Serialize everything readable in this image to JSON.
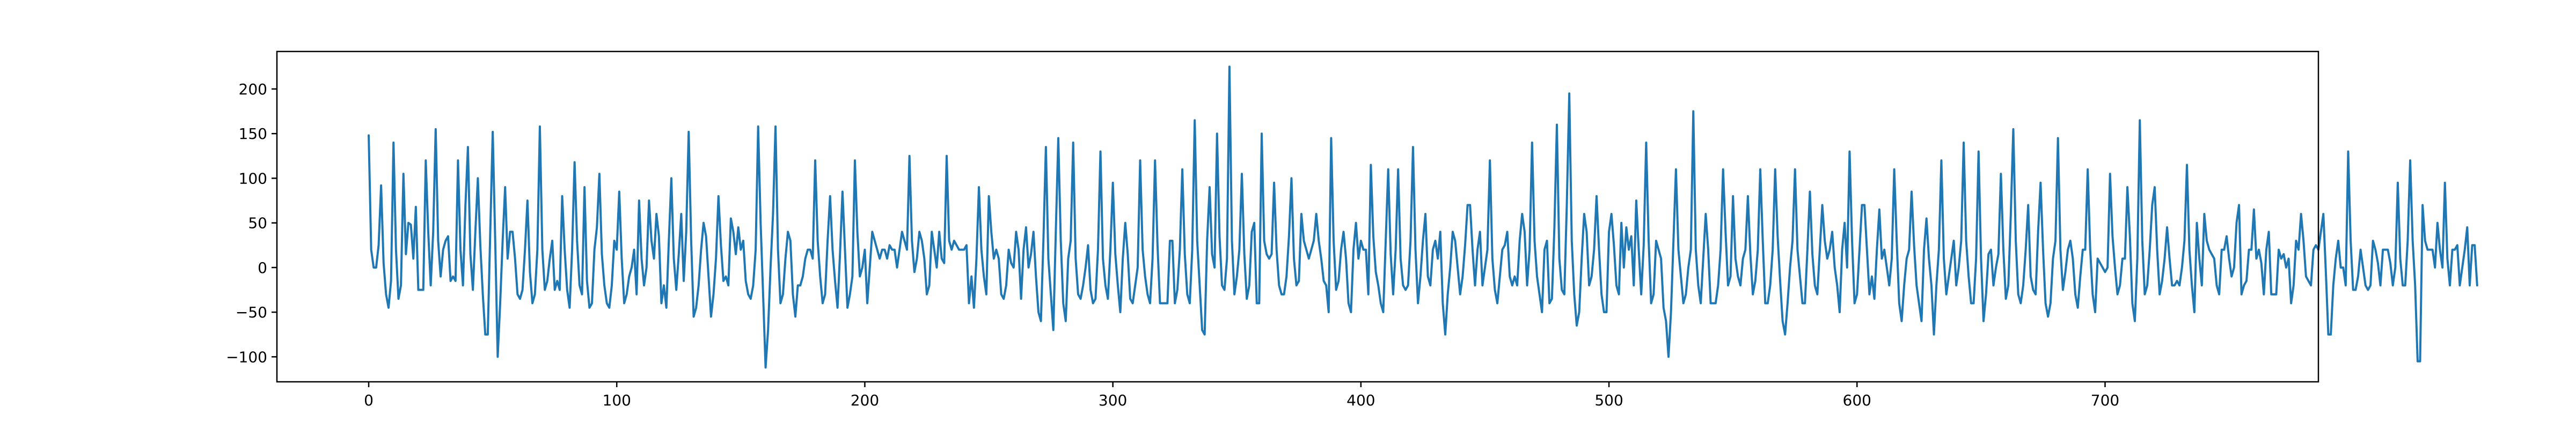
{
  "chart_data": {
    "type": "line",
    "title": "",
    "xlabel": "",
    "ylabel": "",
    "xlim": [
      -37,
      786
    ],
    "ylim": [
      -128,
      242
    ],
    "x_ticks": [
      0,
      100,
      200,
      300,
      400,
      500,
      600,
      700
    ],
    "y_ticks": [
      -100,
      -50,
      0,
      50,
      100,
      150,
      200
    ],
    "x_tick_labels": [
      "0",
      "100",
      "200",
      "300",
      "400",
      "500",
      "600",
      "700"
    ],
    "y_tick_labels": [
      "−100",
      "−50",
      "0",
      "50",
      "100",
      "150",
      "200"
    ],
    "grid": false,
    "legend": "none",
    "line_color": "#1f77b4",
    "series": [
      {
        "x_start": 0,
        "x_step": 1,
        "values": [
          148,
          20,
          0,
          0,
          25,
          92,
          5,
          -30,
          -45,
          -15,
          140,
          20,
          -35,
          -20,
          105,
          15,
          50,
          48,
          10,
          68,
          -25,
          -25,
          -25,
          120,
          40,
          -20,
          40,
          155,
          30,
          -10,
          20,
          30,
          35,
          -15,
          -10,
          -15,
          120,
          20,
          -20,
          70,
          135,
          15,
          -25,
          40,
          100,
          25,
          -30,
          -75,
          -75,
          40,
          152,
          30,
          -100,
          -40,
          30,
          90,
          10,
          40,
          40,
          10,
          -30,
          -35,
          -25,
          20,
          75,
          -5,
          -40,
          -30,
          20,
          158,
          20,
          -25,
          -15,
          10,
          30,
          -25,
          -15,
          -25,
          80,
          20,
          -25,
          -45,
          20,
          118,
          30,
          -20,
          -30,
          90,
          -15,
          -45,
          -40,
          20,
          45,
          105,
          15,
          -20,
          -40,
          -45,
          -20,
          30,
          20,
          85,
          10,
          -40,
          -30,
          -10,
          0,
          20,
          -30,
          75,
          10,
          -20,
          0,
          75,
          30,
          10,
          60,
          35,
          -40,
          -20,
          -45,
          30,
          100,
          10,
          -25,
          15,
          60,
          -15,
          40,
          152,
          30,
          -55,
          -45,
          -20,
          20,
          50,
          35,
          -10,
          -55,
          -30,
          10,
          80,
          25,
          -15,
          -10,
          -20,
          55,
          40,
          15,
          45,
          20,
          30,
          -15,
          -30,
          -35,
          -20,
          20,
          158,
          50,
          -30,
          -112,
          -70,
          0,
          60,
          158,
          20,
          -40,
          -30,
          10,
          40,
          30,
          -30,
          -55,
          -20,
          -20,
          -10,
          10,
          20,
          20,
          10,
          120,
          30,
          -10,
          -40,
          -30,
          30,
          80,
          20,
          -15,
          -45,
          15,
          85,
          20,
          -45,
          -30,
          -10,
          120,
          40,
          -10,
          0,
          20,
          -40,
          0,
          40,
          30,
          20,
          10,
          20,
          20,
          10,
          25,
          20,
          20,
          0,
          20,
          40,
          30,
          20,
          125,
          30,
          -5,
          10,
          40,
          30,
          10,
          -30,
          -20,
          40,
          20,
          0,
          40,
          10,
          5,
          125,
          30,
          20,
          30,
          25,
          20,
          20,
          20,
          25,
          -40,
          -10,
          -45,
          10,
          90,
          20,
          -10,
          -30,
          80,
          40,
          10,
          20,
          10,
          -30,
          -35,
          -20,
          20,
          5,
          0,
          40,
          20,
          -35,
          20,
          45,
          0,
          15,
          40,
          -10,
          -50,
          -60,
          30,
          135,
          10,
          -30,
          -70,
          40,
          145,
          30,
          -40,
          -60,
          10,
          30,
          140,
          10,
          -30,
          -35,
          -20,
          0,
          25,
          -25,
          -40,
          -35,
          20,
          130,
          10,
          -20,
          -35,
          20,
          95,
          15,
          -20,
          -50,
          10,
          50,
          15,
          -35,
          -40,
          -20,
          0,
          120,
          20,
          -10,
          -30,
          -40,
          10,
          120,
          25,
          -40,
          -40,
          -40,
          -40,
          30,
          30,
          -40,
          -25,
          20,
          110,
          15,
          -30,
          -40,
          20,
          165,
          30,
          -20,
          -70,
          -75,
          30,
          90,
          15,
          0,
          150,
          35,
          -20,
          -25,
          10,
          225,
          30,
          -30,
          -10,
          20,
          105,
          15,
          -35,
          -20,
          40,
          50,
          -40,
          -40,
          150,
          30,
          15,
          10,
          15,
          95,
          20,
          -20,
          -30,
          -30,
          -10,
          35,
          100,
          10,
          -20,
          -15,
          60,
          30,
          20,
          10,
          20,
          30,
          60,
          30,
          10,
          -15,
          -20,
          -50,
          145,
          30,
          -25,
          -15,
          20,
          40,
          10,
          -40,
          -50,
          20,
          50,
          10,
          30,
          20,
          20,
          -30,
          115,
          35,
          -5,
          -20,
          -40,
          -50,
          30,
          110,
          15,
          -30,
          20,
          110,
          10,
          -20,
          -25,
          -20,
          30,
          135,
          20,
          -40,
          -10,
          30,
          60,
          -10,
          -20,
          20,
          30,
          10,
          40,
          -40,
          -75,
          -30,
          0,
          40,
          30,
          0,
          -30,
          -10,
          25,
          70,
          70,
          20,
          -20,
          20,
          40,
          -20,
          0,
          20,
          120,
          10,
          -25,
          -40,
          -10,
          20,
          25,
          40,
          -10,
          -20,
          -10,
          -20,
          30,
          60,
          40,
          -20,
          20,
          140,
          30,
          -10,
          -30,
          -50,
          20,
          30,
          -40,
          -35,
          45,
          160,
          10,
          -25,
          -30,
          70,
          195,
          30,
          -30,
          -65,
          -50,
          10,
          60,
          40,
          -20,
          -10,
          20,
          80,
          20,
          -30,
          -50,
          -50,
          40,
          60,
          25,
          -20,
          -30,
          50,
          0,
          45,
          20,
          35,
          -20,
          75,
          20,
          -30,
          25,
          140,
          30,
          -40,
          -30,
          30,
          20,
          10,
          -45,
          -60,
          -100,
          -50,
          30,
          110,
          20,
          -10,
          -40,
          -30,
          0,
          20,
          175,
          20,
          -20,
          -40,
          10,
          60,
          20,
          -40,
          -40,
          -40,
          -20,
          20,
          110,
          40,
          -20,
          -10,
          80,
          10,
          -10,
          -20,
          10,
          20,
          80,
          15,
          -30,
          -15,
          20,
          110,
          30,
          -40,
          -40,
          -20,
          20,
          110,
          35,
          -15,
          -60,
          -75,
          -40,
          0,
          30,
          110,
          20,
          -10,
          -40,
          -40,
          20,
          85,
          15,
          -20,
          -30,
          20,
          70,
          30,
          10,
          20,
          40,
          0,
          -20,
          -50,
          20,
          50,
          0,
          130,
          30,
          -40,
          -30,
          20,
          70,
          70,
          20,
          -30,
          -10,
          -35,
          20,
          65,
          10,
          20,
          0,
          -20,
          10,
          110,
          30,
          -40,
          -60,
          -20,
          10,
          20,
          85,
          25,
          -20,
          -40,
          -60,
          20,
          55,
          10,
          -20,
          -75,
          -20,
          20,
          120,
          10,
          -30,
          -10,
          10,
          30,
          -20,
          0,
          30,
          140,
          30,
          -10,
          -40,
          -40,
          10,
          130,
          10,
          -60,
          -30,
          15,
          20,
          -20,
          0,
          15,
          105,
          20,
          -35,
          -20,
          60,
          155,
          30,
          -30,
          -40,
          -20,
          20,
          70,
          -10,
          -25,
          -30,
          40,
          95,
          20,
          -40,
          -55,
          -40,
          10,
          30,
          145,
          20,
          -25,
          -5,
          20,
          30,
          10,
          -30,
          -45,
          -10,
          20,
          20,
          110,
          20,
          -30,
          -50,
          10,
          5,
          0,
          -5,
          0,
          105,
          35,
          0,
          -30,
          -20,
          10,
          10,
          90,
          35,
          -40,
          -60,
          10,
          165,
          30,
          -30,
          -20,
          20,
          70,
          90,
          20,
          -30,
          -15,
          10,
          45,
          10,
          -20,
          -20,
          -15,
          -20,
          0,
          30,
          115,
          20,
          -20,
          -50,
          50,
          10,
          -20,
          60,
          30,
          20,
          15,
          10,
          -20,
          -30,
          20,
          20,
          35,
          10,
          -10,
          0,
          50,
          70,
          -30,
          -20,
          -15,
          20,
          20,
          65,
          10,
          20,
          5,
          -30,
          20,
          40,
          -30,
          -30,
          -30,
          20,
          10,
          15,
          0,
          10,
          -40,
          -20,
          30,
          20,
          60,
          30,
          -10,
          -15,
          -20,
          20,
          25,
          20,
          40,
          60,
          -5,
          -75,
          -75,
          -20,
          10,
          30,
          0,
          0,
          -20,
          130,
          30,
          -25,
          -25,
          -10,
          20,
          0,
          -20,
          -25,
          -20,
          30,
          20,
          5,
          -20,
          20,
          20,
          20,
          5,
          -20,
          0,
          95,
          10,
          -20,
          -20,
          30,
          120,
          30,
          -20,
          -105,
          -105,
          70,
          30,
          20,
          20,
          20,
          0,
          50,
          20,
          0,
          95,
          10,
          -20,
          20,
          20,
          25,
          -20,
          0,
          20,
          45,
          -20,
          25,
          25,
          -20
        ]
      }
    ]
  }
}
